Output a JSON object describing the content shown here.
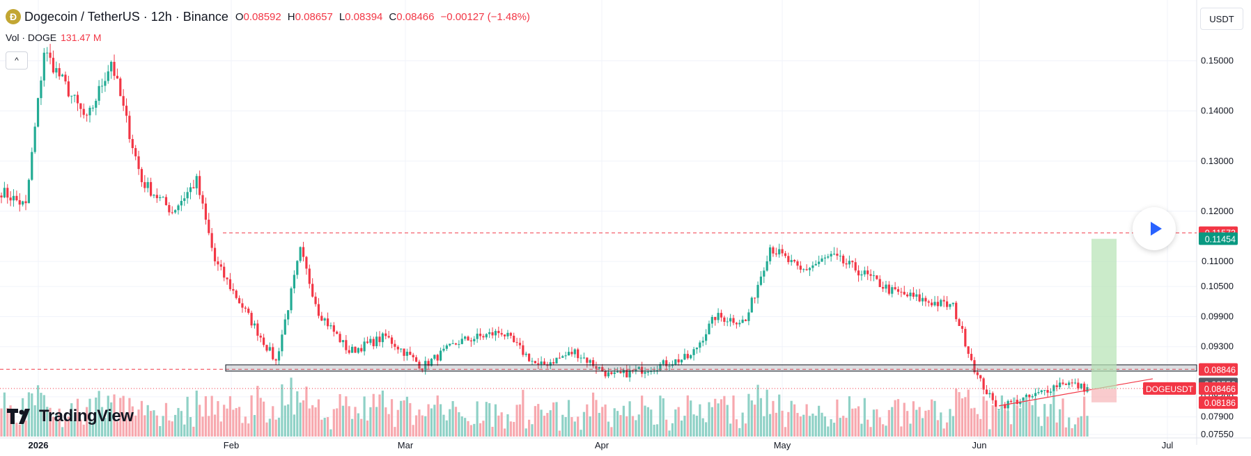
{
  "header": {
    "symbol_title": "Dogecoin / TetherUS · 12h · Binance",
    "logo_text": "Ð",
    "ohlc": [
      {
        "key": "O",
        "value": "0.08592"
      },
      {
        "key": "H",
        "value": "0.08657"
      },
      {
        "key": "L",
        "value": "0.08394"
      },
      {
        "key": "C",
        "value": "0.08466"
      },
      {
        "key": "",
        "value": "−0.00127 (−1.48%)"
      }
    ]
  },
  "volume": {
    "label": "Vol · DOGE",
    "value": "131.47 M"
  },
  "controls": {
    "collapse": "^",
    "currency": "USDT"
  },
  "branding": {
    "name": "TradingView"
  },
  "colors": {
    "up": "#22ab94",
    "down": "#f23645",
    "up_vol": "#8fd1c6",
    "down_vol": "#f7a8ae",
    "grid": "#f0f3fa",
    "target": "#b5e3b3",
    "stop": "#f7b5b8"
  },
  "chart_data": {
    "type": "candlestick",
    "symbol": "DOGEUSDT",
    "timeframe": "12h",
    "ylim": [
      0.0755,
      0.1545
    ],
    "y_ticks": [
      "0.15000",
      "0.14000",
      "0.13000",
      "0.12000",
      "0.11000",
      "0.10500",
      "0.09900",
      "0.09300",
      "0.08300",
      "0.07900",
      "0.07550"
    ],
    "x_labels": [
      "2026",
      "Feb",
      "Mar",
      "Apr",
      "May",
      "Jun",
      "Jul"
    ],
    "anchors": [
      [
        0,
        0.124
      ],
      [
        8,
        0.121
      ],
      [
        14,
        0.152
      ],
      [
        20,
        0.146
      ],
      [
        28,
        0.138
      ],
      [
        36,
        0.15
      ],
      [
        46,
        0.126
      ],
      [
        56,
        0.12
      ],
      [
        64,
        0.126
      ],
      [
        70,
        0.11
      ],
      [
        78,
        0.102
      ],
      [
        84,
        0.096
      ],
      [
        90,
        0.09
      ],
      [
        98,
        0.112
      ],
      [
        104,
        0.1
      ],
      [
        114,
        0.092
      ],
      [
        126,
        0.095
      ],
      [
        138,
        0.089
      ],
      [
        150,
        0.094
      ],
      [
        164,
        0.096
      ],
      [
        176,
        0.089
      ],
      [
        188,
        0.092
      ],
      [
        200,
        0.087
      ],
      [
        214,
        0.089
      ],
      [
        226,
        0.091
      ],
      [
        234,
        0.099
      ],
      [
        244,
        0.098
      ],
      [
        252,
        0.113
      ],
      [
        262,
        0.108
      ],
      [
        272,
        0.111
      ],
      [
        280,
        0.1085
      ],
      [
        292,
        0.104
      ],
      [
        304,
        0.102
      ],
      [
        312,
        0.101
      ],
      [
        320,
        0.087
      ],
      [
        326,
        0.081
      ],
      [
        338,
        0.083
      ],
      [
        348,
        0.086
      ],
      [
        356,
        0.0846
      ]
    ],
    "candle_count": 357,
    "series": [
      {
        "name": "Vol · DOGE"
      }
    ],
    "lines": [
      {
        "label": "resistance",
        "price": 0.1157
      },
      {
        "label": "support",
        "price": 0.0885
      }
    ],
    "support_zone": {
      "from": 0.0884,
      "to": 0.0891
    },
    "trendline": {
      "from_price": 0.0812,
      "to_price": 0.0866
    },
    "position": {
      "entry": 0.0846,
      "target": 0.1145,
      "stop": 0.0819
    },
    "price_labels": [
      {
        "text": "0.11573",
        "price": 0.11573,
        "bg": "#f23645"
      },
      {
        "text": "0.11454",
        "price": 0.11454,
        "bg": "#089981"
      },
      {
        "text": "0.08846",
        "price": 0.08846,
        "bg": "#f23645"
      },
      {
        "text": "0.08556",
        "price": 0.08556,
        "bg": "#555a65"
      },
      {
        "text": "0.08466",
        "price": 0.08466,
        "bg": "#f23645"
      },
      {
        "text": "0.08186",
        "price": 0.08186,
        "bg": "#f23645"
      }
    ],
    "symbol_tag": {
      "text": "DOGEUSDT",
      "bg": "#f23645"
    }
  }
}
